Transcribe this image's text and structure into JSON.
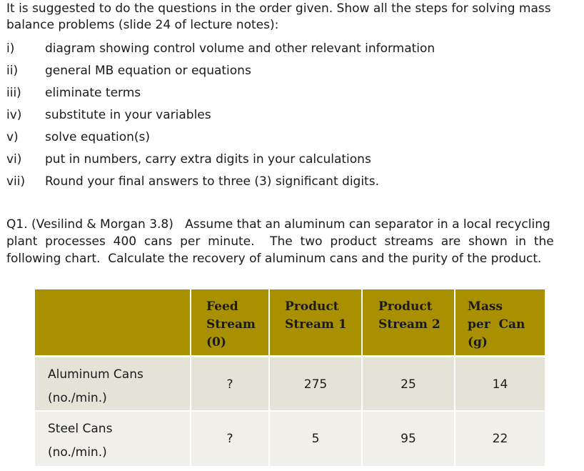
{
  "intro": {
    "line1": "It is suggested to do the questions in the order given. Show all the steps for solving mass",
    "line2": "balance problems (slide 24 of lecture notes):"
  },
  "steps": [
    {
      "num": "i)",
      "text": "diagram showing control volume and other relevant information"
    },
    {
      "num": "ii)",
      "text": "general MB equation or equations"
    },
    {
      "num": "iii)",
      "text": "eliminate terms"
    },
    {
      "num": "iv)",
      "text": "substitute in your variables"
    },
    {
      "num": "v)",
      "text": "solve equation(s)"
    },
    {
      "num": "vi)",
      "text": "put in numbers, carry extra digits in your calculations"
    },
    {
      "num": "vii)",
      "text": "Round your final answers to three (3) significant digits."
    }
  ],
  "question": {
    "line1": "Q1. (Vesilind & Morgan 3.8)   Assume that an aluminum can separator in a local recycling",
    "line2": "plant  processes  400  cans  per  minute.    The  two  product  streams  are  shown  in  the",
    "line3": "following chart.  Calculate the recovery of aluminum cans and the purity of the product."
  },
  "table": {
    "headers": [
      {
        "l1": "Feed",
        "l2": "Stream",
        "l3": "(0)"
      },
      {
        "l1": "Product",
        "l2": "Stream 1",
        "l3": ""
      },
      {
        "l1": "Product",
        "l2": "Stream 2",
        "l3": ""
      },
      {
        "l1": "Mass",
        "l2": "per  Can",
        "l3": "(g)"
      }
    ],
    "rows": [
      {
        "label1": "Aluminum Cans",
        "label2": "(no./min.)",
        "values": [
          "?",
          "275",
          "25",
          "14"
        ]
      },
      {
        "label1": "Steel Cans",
        "label2": "(no./min.)",
        "values": [
          "?",
          "5",
          "95",
          "22"
        ]
      }
    ]
  },
  "colors": {
    "header_bg": "#a99000",
    "row1_bg": "#e5e2d7",
    "row2_bg": "#f1efe9"
  }
}
